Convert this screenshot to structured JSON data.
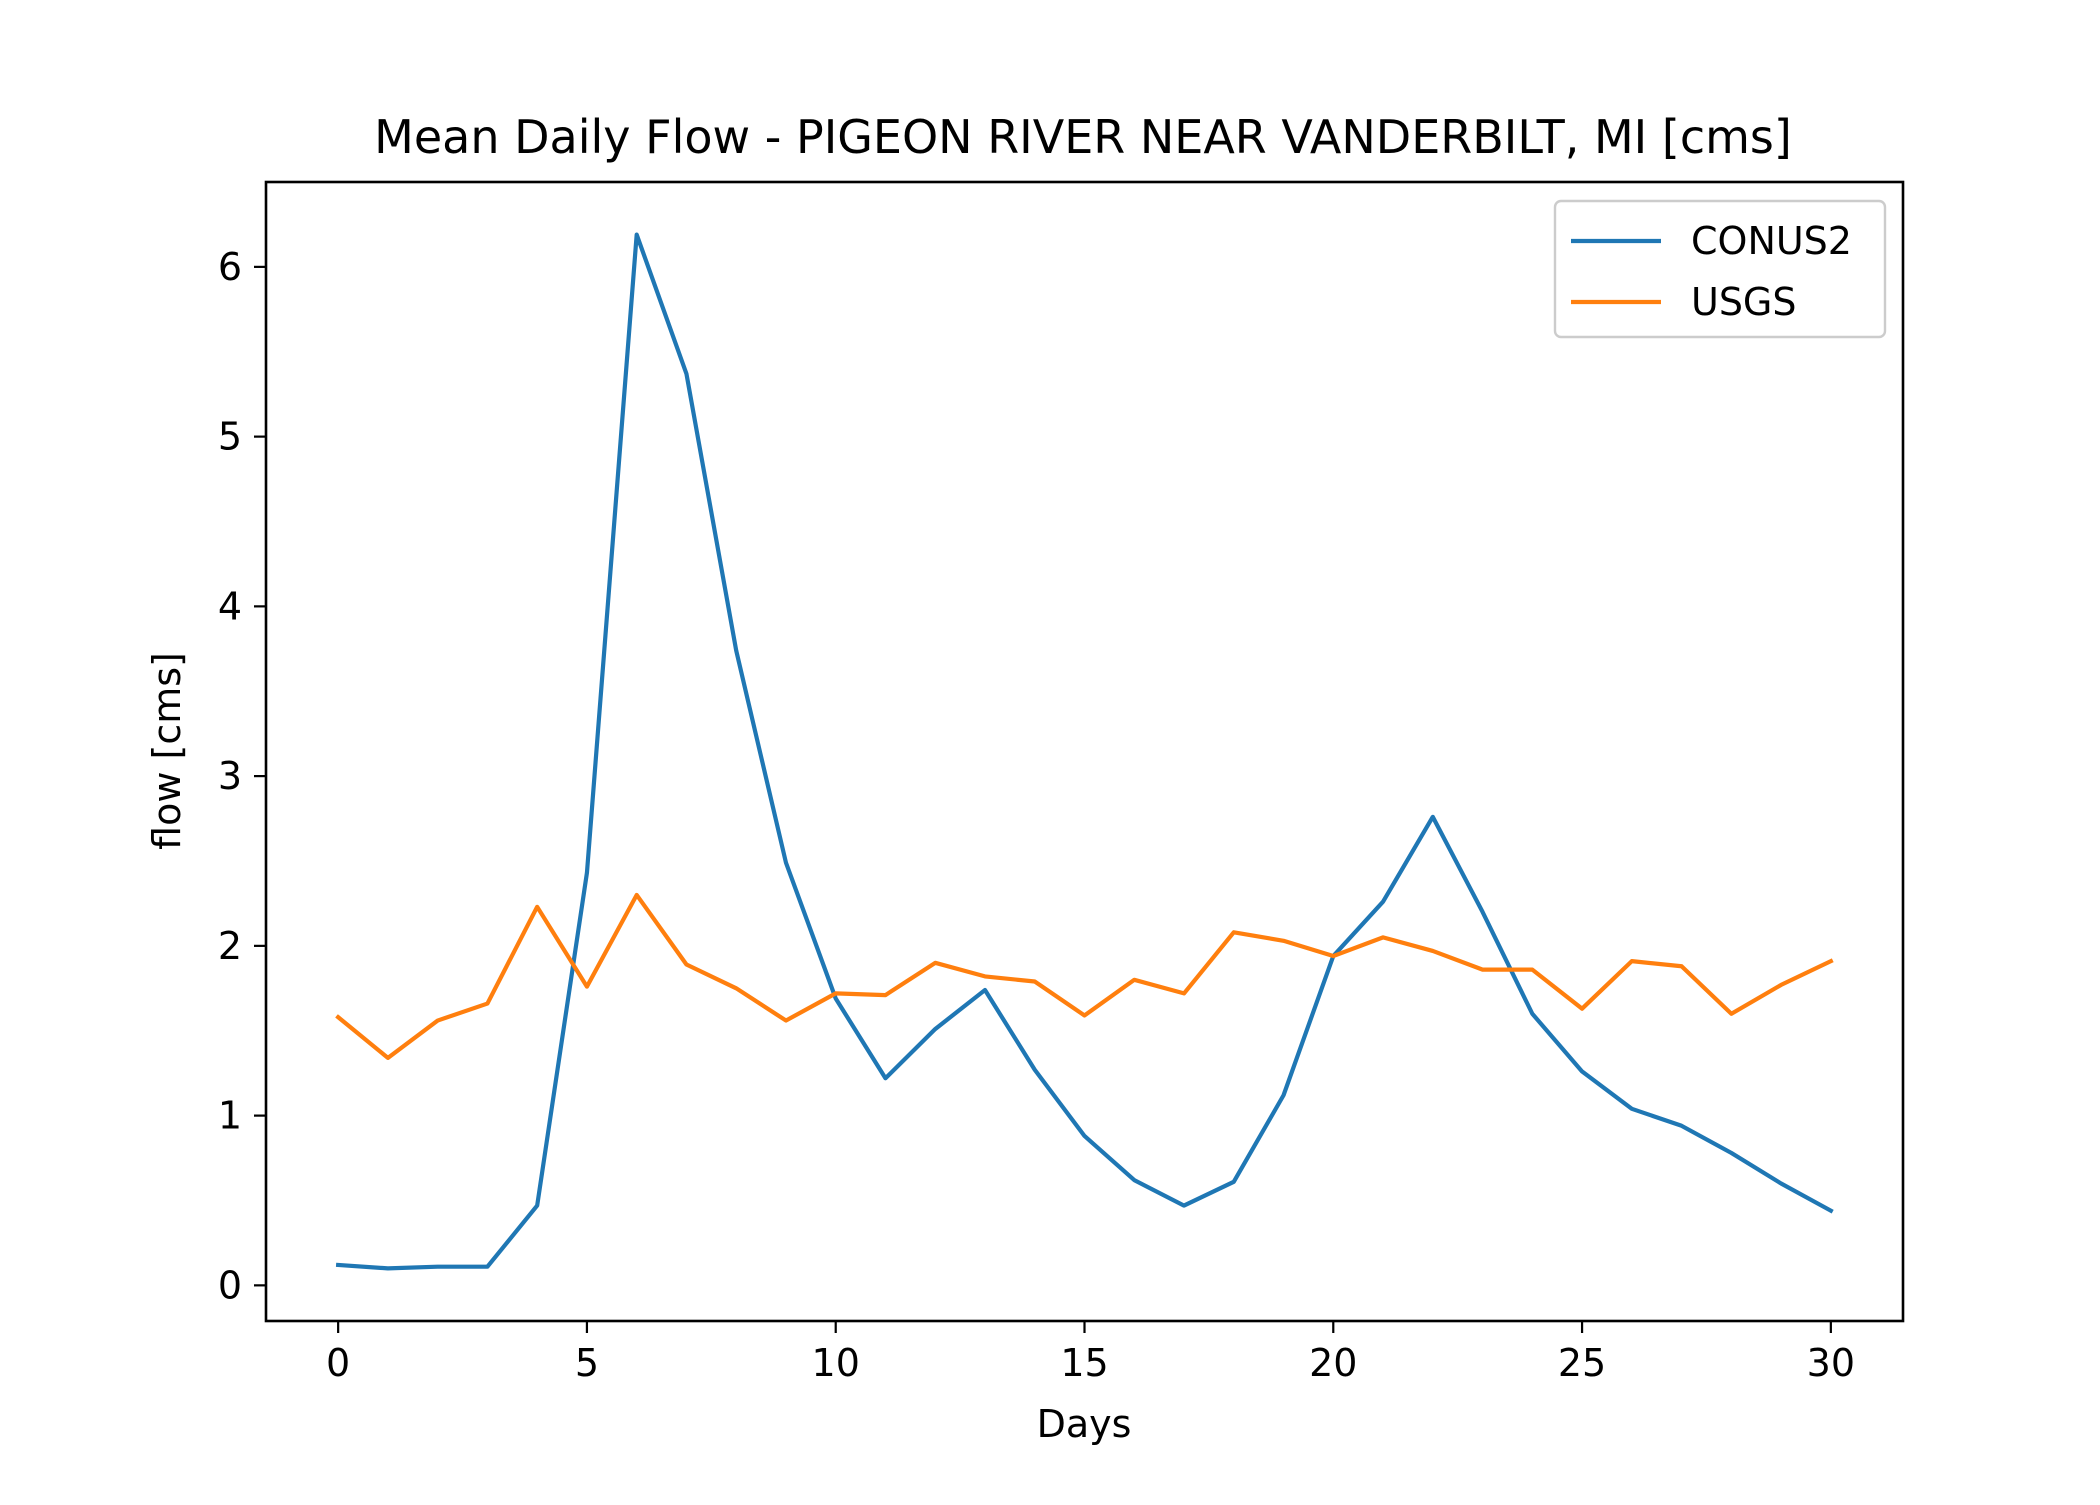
{
  "chart_data": {
    "type": "line",
    "title": "Mean Daily Flow - PIGEON RIVER NEAR VANDERBILT, MI [cms]",
    "xlabel": "Days",
    "ylabel": "flow [cms]",
    "xlim": [
      -1.45,
      31.45
    ],
    "ylim": [
      -0.21,
      6.5
    ],
    "xticks": [
      0,
      5,
      10,
      15,
      20,
      25,
      30
    ],
    "xtick_labels": [
      "0",
      "5",
      "10",
      "15",
      "20",
      "25",
      "30"
    ],
    "yticks": [
      0,
      1,
      2,
      3,
      4,
      5,
      6
    ],
    "ytick_labels": [
      "0",
      "1",
      "2",
      "3",
      "4",
      "5",
      "6"
    ],
    "grid": false,
    "legend_position": "upper right",
    "x": [
      0,
      1,
      2,
      3,
      4,
      5,
      6,
      7,
      8,
      9,
      10,
      11,
      12,
      13,
      14,
      15,
      16,
      17,
      18,
      19,
      20,
      21,
      22,
      23,
      24,
      25,
      26,
      27,
      28,
      29,
      30
    ],
    "series": [
      {
        "name": "CONUS2",
        "color": "#1f77b4",
        "values": [
          0.12,
          0.1,
          0.11,
          0.11,
          0.47,
          2.43,
          6.19,
          5.37,
          3.74,
          2.49,
          1.69,
          1.22,
          1.51,
          1.74,
          1.27,
          0.88,
          0.62,
          0.47,
          0.61,
          1.12,
          1.94,
          2.26,
          2.76,
          2.2,
          1.6,
          1.26,
          1.04,
          0.94,
          0.78,
          0.6,
          0.44
        ]
      },
      {
        "name": "USGS",
        "color": "#ff7f0e",
        "values": [
          1.58,
          1.34,
          1.56,
          1.66,
          2.23,
          1.76,
          2.3,
          1.89,
          1.75,
          1.56,
          1.72,
          1.71,
          1.9,
          1.82,
          1.79,
          1.59,
          1.8,
          1.72,
          2.08,
          2.03,
          1.94,
          2.05,
          1.97,
          1.86,
          1.86,
          1.63,
          1.91,
          1.88,
          1.6,
          1.77,
          1.91
        ]
      }
    ]
  }
}
